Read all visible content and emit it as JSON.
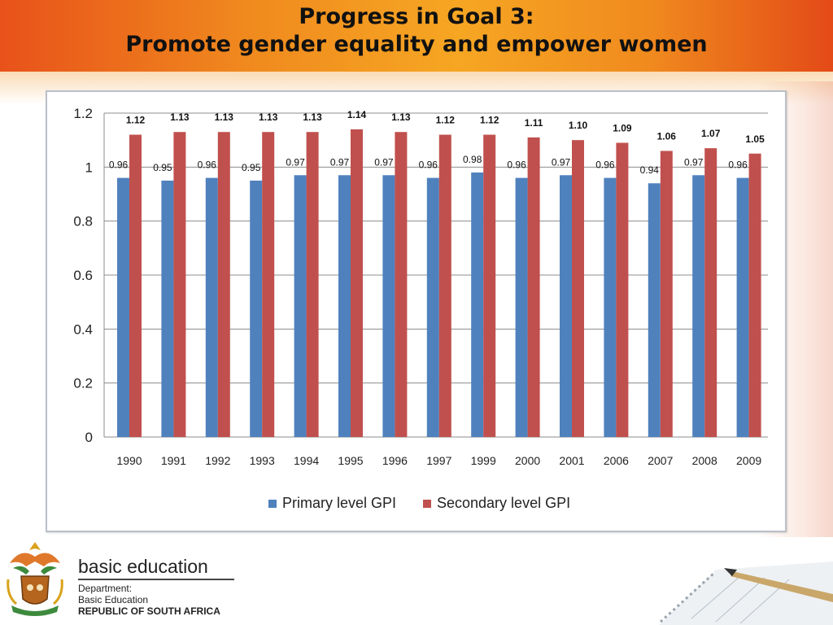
{
  "slide": {
    "title_line1": "Progress in Goal 3:",
    "title_line2": "Promote gender equality and empower women"
  },
  "footer": {
    "brand": "basic education",
    "dept_line1": "Department:",
    "dept_line2": "Basic Education",
    "dept_line3": "REPUBLIC OF SOUTH AFRICA"
  },
  "chart_data": {
    "type": "bar",
    "title": "",
    "xlabel": "",
    "ylabel": "",
    "ylim": [
      0,
      1.2
    ],
    "yticks": [
      "0",
      "0.2",
      "0.4",
      "0.6",
      "0.8",
      "1",
      "1.2"
    ],
    "grid": true,
    "legend_position": "bottom",
    "categories": [
      "1990",
      "1991",
      "1992",
      "1993",
      "1994",
      "1995",
      "1996",
      "1997",
      "1999",
      "2000",
      "2001",
      "2006",
      "2007",
      "2008",
      "2009"
    ],
    "series": [
      {
        "name": "Primary level GPI",
        "color": "#4f81bd",
        "values": [
          0.96,
          0.95,
          0.96,
          0.95,
          0.97,
          0.97,
          0.97,
          0.96,
          0.98,
          0.96,
          0.97,
          0.96,
          0.94,
          0.97,
          0.96
        ],
        "labels": [
          "0.96",
          "0.95",
          "0.96",
          "0.95",
          "0.97",
          "0.97",
          "0.97",
          "0.96",
          "0.98",
          "0.96",
          "0.97",
          "0.96",
          "0.94",
          "0.97",
          "0.96"
        ]
      },
      {
        "name": "Secondary level GPI",
        "color": "#c0504d",
        "values": [
          1.12,
          1.13,
          1.13,
          1.13,
          1.13,
          1.14,
          1.13,
          1.12,
          1.12,
          1.11,
          1.1,
          1.09,
          1.06,
          1.07,
          1.05
        ],
        "labels": [
          "1.12",
          "1.13",
          "1.13",
          "1.13",
          "1.13",
          "1.14",
          "1.13",
          "1.12",
          "1.12",
          "1.11",
          "1.10",
          "1.09",
          "1.06",
          "1.07",
          "1.05"
        ]
      }
    ]
  },
  "colors": {
    "header_orange": "#f08a1e",
    "primary_bar": "#4f81bd",
    "secondary_bar": "#c0504d"
  },
  "icons": {
    "logo": "south-africa-coat-of-arms-icon",
    "decoration": "pen-and-notebook-icon"
  }
}
